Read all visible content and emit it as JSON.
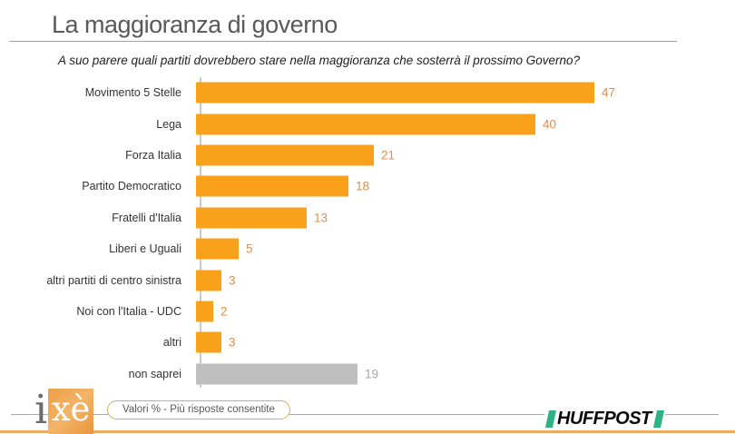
{
  "header": {
    "title": "La maggioranza di governo",
    "subtitle": "A suo parere quali partiti dovrebbero stare nella maggioranza che sosterrà il prossimo Governo?"
  },
  "chart_data": {
    "type": "bar",
    "orientation": "horizontal",
    "title": "La maggioranza di governo",
    "unit": "%",
    "categories": [
      "Movimento 5 Stelle",
      "Lega",
      "Forza Italia",
      "Partito Democratico",
      "Fratelli d'Italia",
      "Liberi e Uguali",
      "altri partiti di centro sinistra",
      "Noi con l'Italia - UDC",
      "altri",
      "non saprei"
    ],
    "values": [
      47,
      40,
      21,
      18,
      13,
      5,
      3,
      2,
      3,
      19
    ],
    "bar_colors": [
      "#F9A11B",
      "#F9A11B",
      "#F9A11B",
      "#F9A11B",
      "#F9A11B",
      "#F9A11B",
      "#F9A11B",
      "#F9A11B",
      "#F9A11B",
      "#BFBFBF"
    ],
    "value_label_colors": [
      "#E28E49",
      "#E28E49",
      "#E28E49",
      "#E28E49",
      "#E28E49",
      "#E28E49",
      "#E28E49",
      "#E28E49",
      "#E28E49",
      "#A6A6A6"
    ],
    "xlim": [
      0,
      60
    ],
    "gridlines": false,
    "legend": "none",
    "note": "Valori % - Più risposte consentite"
  },
  "footer": {
    "note_label": "Valori % - Più risposte consentite",
    "ixe_logo": {
      "i": "i",
      "xe": "xè"
    },
    "huffpost_label": "HUFFPOST"
  },
  "colors": {
    "bar_orange": "#F9A11B",
    "bar_gray": "#BFBFBF",
    "value_orange": "#E28E49",
    "value_gray": "#A6A6A6",
    "title_gray": "#595959",
    "rule_gold": "#C7A158",
    "huffpost_green": "#2DB383",
    "ixe_orange": "#EC9E45"
  }
}
